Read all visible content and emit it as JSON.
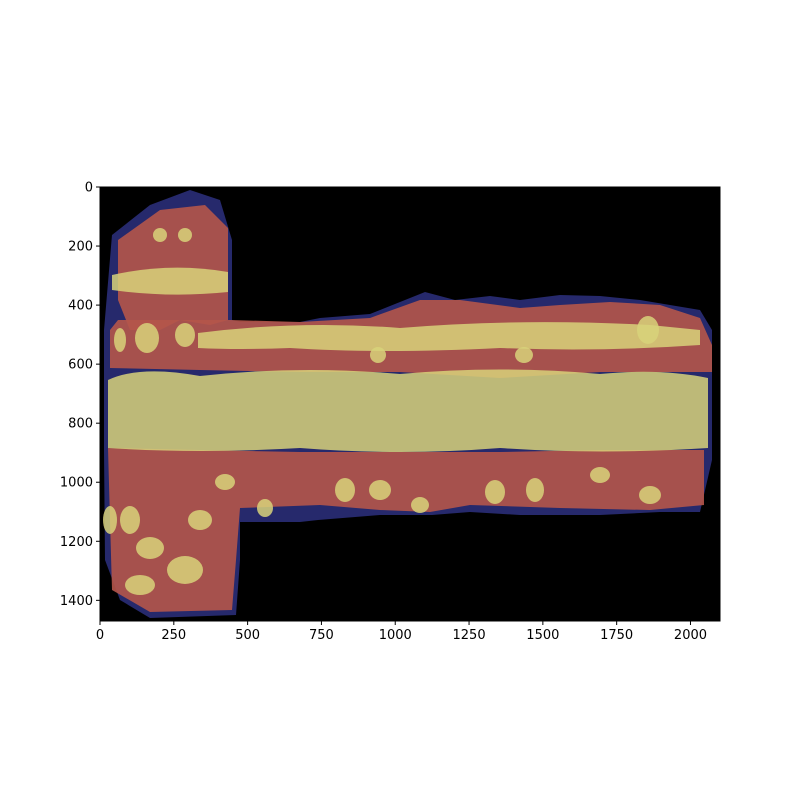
{
  "image_plot": {
    "xlim": [
      0,
      2100
    ],
    "ylim": [
      1470,
      0
    ],
    "x_ticks": [
      0,
      250,
      500,
      750,
      1000,
      1250,
      1500,
      1750,
      2000
    ],
    "y_ticks": [
      0,
      200,
      400,
      600,
      800,
      1000,
      1200,
      1400
    ],
    "x_tick_labels": [
      "0",
      "250",
      "500",
      "750",
      "1000",
      "1250",
      "1500",
      "1750",
      "2000"
    ],
    "y_tick_labels": [
      "0",
      "200",
      "400",
      "600",
      "800",
      "1000",
      "1200",
      "1400"
    ],
    "background_color": "#000000",
    "overlay_colors": {
      "yellow_class": "#d8d27a",
      "red_class": "#b5554a",
      "blue_class": "#2a2e78"
    }
  }
}
